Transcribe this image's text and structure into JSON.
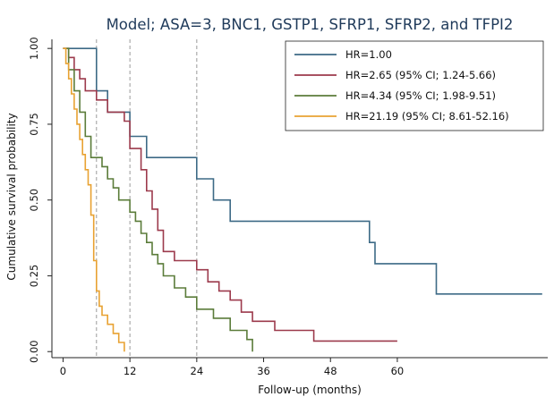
{
  "chart_data": {
    "type": "line",
    "title": "Model; ASA=3, BNC1, GSTP1, SFRP1, SFRP2, and TFPI2",
    "xlabel": "Follow-up (months)",
    "ylabel": "Cumulative survival probability",
    "xlim": [
      -2,
      87
    ],
    "ylim": [
      -0.02,
      1.03
    ],
    "x_ticks": [
      0,
      12,
      24,
      36,
      48,
      60
    ],
    "x_tick_labels": [
      "0",
      "12",
      "24",
      "36",
      "48",
      "60"
    ],
    "y_ticks": [
      0,
      0.25,
      0.5,
      0.75,
      1.0
    ],
    "y_tick_labels": [
      "0.00",
      "0.25",
      "0.50",
      "0.75",
      "1.00"
    ],
    "reference_lines_x": [
      6,
      12,
      24
    ],
    "grid": false,
    "legend_position": "top-right",
    "series": [
      {
        "name": "HR=1.00",
        "color": "#3d6a86",
        "points": [
          [
            0,
            1.0
          ],
          [
            6,
            1.0
          ],
          [
            6,
            0.86
          ],
          [
            8,
            0.86
          ],
          [
            8,
            0.79
          ],
          [
            12,
            0.79
          ],
          [
            12,
            0.71
          ],
          [
            15,
            0.71
          ],
          [
            15,
            0.64
          ],
          [
            24,
            0.64
          ],
          [
            24,
            0.57
          ],
          [
            27,
            0.57
          ],
          [
            27,
            0.5
          ],
          [
            30,
            0.5
          ],
          [
            30,
            0.43
          ],
          [
            55,
            0.43
          ],
          [
            55,
            0.36
          ],
          [
            56,
            0.36
          ],
          [
            56,
            0.29
          ],
          [
            67,
            0.29
          ],
          [
            67,
            0.19
          ],
          [
            86,
            0.19
          ]
        ]
      },
      {
        "name": "HR=2.65 (95% CI; 1.24-5.66)",
        "color": "#9c3a4c",
        "points": [
          [
            0,
            1.0
          ],
          [
            1,
            1.0
          ],
          [
            1,
            0.97
          ],
          [
            2,
            0.97
          ],
          [
            2,
            0.93
          ],
          [
            3,
            0.93
          ],
          [
            3,
            0.9
          ],
          [
            4,
            0.9
          ],
          [
            4,
            0.86
          ],
          [
            6,
            0.86
          ],
          [
            6,
            0.83
          ],
          [
            8,
            0.83
          ],
          [
            8,
            0.79
          ],
          [
            11,
            0.79
          ],
          [
            11,
            0.76
          ],
          [
            12,
            0.76
          ],
          [
            12,
            0.67
          ],
          [
            14,
            0.67
          ],
          [
            14,
            0.6
          ],
          [
            15,
            0.6
          ],
          [
            15,
            0.53
          ],
          [
            16,
            0.53
          ],
          [
            16,
            0.47
          ],
          [
            17,
            0.47
          ],
          [
            17,
            0.4
          ],
          [
            18,
            0.4
          ],
          [
            18,
            0.33
          ],
          [
            20,
            0.33
          ],
          [
            20,
            0.3
          ],
          [
            24,
            0.3
          ],
          [
            24,
            0.27
          ],
          [
            26,
            0.27
          ],
          [
            26,
            0.23
          ],
          [
            28,
            0.23
          ],
          [
            28,
            0.2
          ],
          [
            30,
            0.2
          ],
          [
            30,
            0.17
          ],
          [
            32,
            0.17
          ],
          [
            32,
            0.13
          ],
          [
            34,
            0.13
          ],
          [
            34,
            0.1
          ],
          [
            38,
            0.1
          ],
          [
            38,
            0.07
          ],
          [
            45,
            0.07
          ],
          [
            45,
            0.035
          ],
          [
            60,
            0.035
          ]
        ]
      },
      {
        "name": "HR=4.34 (95% CI; 1.98-9.51)",
        "color": "#5b7c3a",
        "points": [
          [
            0,
            1.0
          ],
          [
            1,
            1.0
          ],
          [
            1,
            0.93
          ],
          [
            2,
            0.93
          ],
          [
            2,
            0.86
          ],
          [
            3,
            0.86
          ],
          [
            3,
            0.79
          ],
          [
            4,
            0.79
          ],
          [
            4,
            0.71
          ],
          [
            5,
            0.71
          ],
          [
            5,
            0.64
          ],
          [
            7,
            0.64
          ],
          [
            7,
            0.61
          ],
          [
            8,
            0.61
          ],
          [
            8,
            0.57
          ],
          [
            9,
            0.57
          ],
          [
            9,
            0.54
          ],
          [
            10,
            0.54
          ],
          [
            10,
            0.5
          ],
          [
            12,
            0.5
          ],
          [
            12,
            0.46
          ],
          [
            13,
            0.46
          ],
          [
            13,
            0.43
          ],
          [
            14,
            0.43
          ],
          [
            14,
            0.39
          ],
          [
            15,
            0.39
          ],
          [
            15,
            0.36
          ],
          [
            16,
            0.36
          ],
          [
            16,
            0.32
          ],
          [
            17,
            0.32
          ],
          [
            17,
            0.29
          ],
          [
            18,
            0.29
          ],
          [
            18,
            0.25
          ],
          [
            20,
            0.25
          ],
          [
            20,
            0.21
          ],
          [
            22,
            0.21
          ],
          [
            22,
            0.18
          ],
          [
            24,
            0.18
          ],
          [
            24,
            0.14
          ],
          [
            27,
            0.14
          ],
          [
            27,
            0.11
          ],
          [
            30,
            0.11
          ],
          [
            30,
            0.07
          ],
          [
            33,
            0.07
          ],
          [
            33,
            0.04
          ],
          [
            34,
            0.04
          ],
          [
            34,
            0.0
          ]
        ]
      },
      {
        "name": "HR=21.19 (95% CI; 8.61-52.16)",
        "color": "#e8a232",
        "points": [
          [
            0,
            1.0
          ],
          [
            0.5,
            1.0
          ],
          [
            0.5,
            0.95
          ],
          [
            1,
            0.95
          ],
          [
            1,
            0.9
          ],
          [
            1.5,
            0.9
          ],
          [
            1.5,
            0.85
          ],
          [
            2,
            0.85
          ],
          [
            2,
            0.8
          ],
          [
            2.5,
            0.8
          ],
          [
            2.5,
            0.75
          ],
          [
            3,
            0.75
          ],
          [
            3,
            0.7
          ],
          [
            3.5,
            0.7
          ],
          [
            3.5,
            0.65
          ],
          [
            4,
            0.65
          ],
          [
            4,
            0.6
          ],
          [
            4.5,
            0.6
          ],
          [
            4.5,
            0.55
          ],
          [
            5,
            0.55
          ],
          [
            5,
            0.45
          ],
          [
            5.5,
            0.45
          ],
          [
            5.5,
            0.3
          ],
          [
            6,
            0.3
          ],
          [
            6,
            0.2
          ],
          [
            6.5,
            0.2
          ],
          [
            6.5,
            0.15
          ],
          [
            7,
            0.15
          ],
          [
            7,
            0.12
          ],
          [
            8,
            0.12
          ],
          [
            8,
            0.09
          ],
          [
            9,
            0.09
          ],
          [
            9,
            0.06
          ],
          [
            10,
            0.06
          ],
          [
            10,
            0.03
          ],
          [
            11,
            0.03
          ],
          [
            11,
            0.0
          ]
        ]
      }
    ]
  }
}
